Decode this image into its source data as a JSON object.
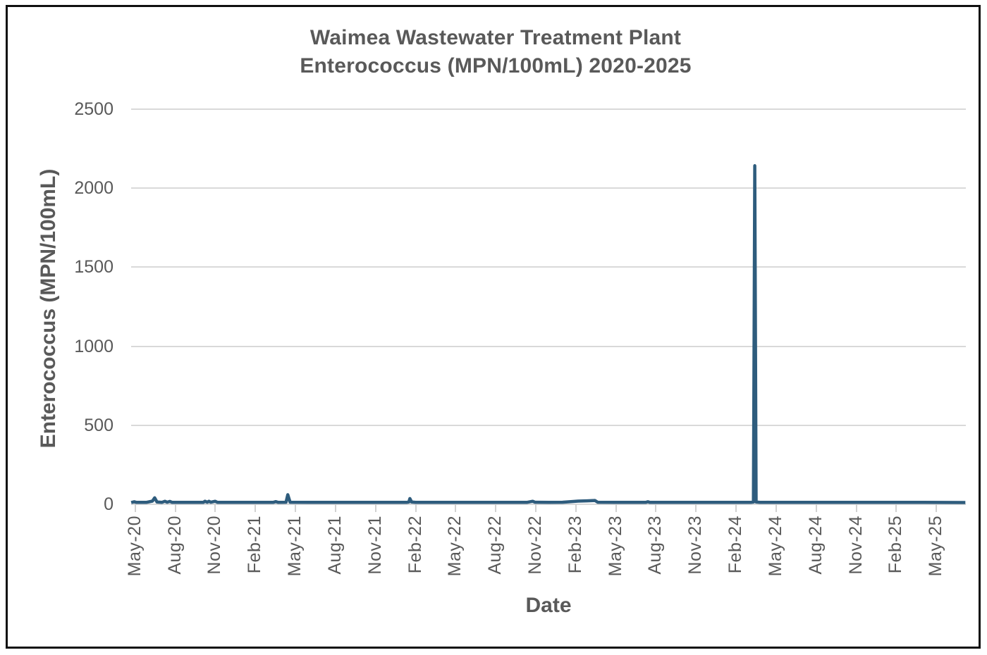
{
  "title": {
    "line1": "Waimea Wastewater Treatment Plant",
    "line2": "Enterococcus (MPN/100mL) 2020-2025"
  },
  "colors": {
    "line": "#2e5c7d",
    "grid": "#d9d9d9",
    "tick": "#d2d2d2",
    "text": "#595959",
    "frame": "#101010"
  },
  "chart_data": {
    "type": "line",
    "title": "Waimea Wastewater Treatment Plant Enterococcus (MPN/100mL) 2020-2025",
    "xlabel": "Date",
    "ylabel": "Enterococcus (MPN/100mL)",
    "ylim": [
      0,
      2500
    ],
    "y_ticks": [
      0,
      500,
      1000,
      1500,
      2000,
      2500
    ],
    "x_ticks": [
      "May-20",
      "Aug-20",
      "Nov-20",
      "Feb-21",
      "May-21",
      "Aug-21",
      "Nov-21",
      "Feb-22",
      "May-22",
      "Aug-22",
      "Nov-22",
      "Feb-23",
      "May-23",
      "Aug-23",
      "Nov-23",
      "Feb-24",
      "May-24",
      "Aug-24",
      "Nov-24",
      "Feb-25",
      "May-25"
    ],
    "x_tick_interval_months": 3,
    "x_range_months_rel_first_tick": [
      -0.3,
      62.2
    ],
    "grid": "horizontal-only",
    "legend": "none",
    "series_name": "Enterococcus (MPN/100mL)",
    "max_point": {
      "date": "2024-03-27",
      "value": 2150
    },
    "points": [
      [
        "2020-05-06",
        0
      ],
      [
        "2020-05-13",
        5
      ],
      [
        "2020-05-18",
        1
      ],
      [
        "2020-06-10",
        1
      ],
      [
        "2020-06-24",
        9
      ],
      [
        "2020-06-29",
        30
      ],
      [
        "2020-07-04",
        3
      ],
      [
        "2020-07-15",
        1
      ],
      [
        "2020-07-22",
        8
      ],
      [
        "2020-07-27",
        2
      ],
      [
        "2020-08-03",
        7
      ],
      [
        "2020-08-08",
        1
      ],
      [
        "2020-09-15",
        1
      ],
      [
        "2020-10-18",
        1
      ],
      [
        "2020-10-22",
        8
      ],
      [
        "2020-10-27",
        2
      ],
      [
        "2020-10-31",
        8
      ],
      [
        "2020-11-05",
        2
      ],
      [
        "2020-11-15",
        8
      ],
      [
        "2020-11-20",
        1
      ],
      [
        "2020-12-15",
        1
      ],
      [
        "2021-02-15",
        1
      ],
      [
        "2021-03-25",
        1
      ],
      [
        "2021-04-01",
        6
      ],
      [
        "2021-04-06",
        1
      ],
      [
        "2021-04-24",
        2
      ],
      [
        "2021-04-28",
        50
      ],
      [
        "2021-05-03",
        2
      ],
      [
        "2021-06-15",
        1
      ],
      [
        "2021-09-15",
        1
      ],
      [
        "2021-12-15",
        1
      ],
      [
        "2022-01-25",
        1
      ],
      [
        "2022-01-30",
        3
      ],
      [
        "2022-02-02",
        25
      ],
      [
        "2022-02-06",
        3
      ],
      [
        "2022-02-15",
        1
      ],
      [
        "2022-05-15",
        1
      ],
      [
        "2022-08-15",
        1
      ],
      [
        "2022-10-25",
        1
      ],
      [
        "2022-11-08",
        8
      ],
      [
        "2022-11-13",
        2
      ],
      [
        "2022-12-15",
        1
      ],
      [
        "2023-01-15",
        2
      ],
      [
        "2023-02-01",
        5
      ],
      [
        "2023-02-20",
        9
      ],
      [
        "2023-03-10",
        11
      ],
      [
        "2023-03-28",
        13
      ],
      [
        "2023-04-04",
        2
      ],
      [
        "2023-05-15",
        1
      ],
      [
        "2023-07-22",
        1
      ],
      [
        "2023-07-27",
        5
      ],
      [
        "2023-08-01",
        1
      ],
      [
        "2023-10-15",
        1
      ],
      [
        "2024-01-15",
        1
      ],
      [
        "2024-03-18",
        1
      ],
      [
        "2024-03-24",
        3
      ],
      [
        "2024-03-27",
        2150
      ],
      [
        "2024-03-30",
        3
      ],
      [
        "2024-04-08",
        1
      ],
      [
        "2024-07-15",
        1
      ],
      [
        "2024-10-15",
        1
      ],
      [
        "2025-01-15",
        1
      ],
      [
        "2025-04-15",
        1
      ],
      [
        "2025-07-20",
        0
      ]
    ]
  }
}
